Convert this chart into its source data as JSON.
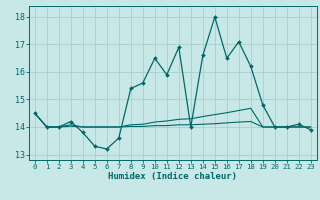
{
  "xlabel": "Humidex (Indice chaleur)",
  "xlim": [
    -0.5,
    23.5
  ],
  "ylim": [
    12.8,
    18.4
  ],
  "yticks": [
    13,
    14,
    15,
    16,
    17,
    18
  ],
  "xticks": [
    0,
    1,
    2,
    3,
    4,
    5,
    6,
    7,
    8,
    9,
    10,
    11,
    12,
    13,
    14,
    15,
    16,
    17,
    18,
    19,
    20,
    21,
    22,
    23
  ],
  "bg_color": "#c8e8e8",
  "grid_color": "#a8cece",
  "line_color": "#006868",
  "main_x": [
    0,
    1,
    2,
    3,
    4,
    5,
    6,
    7,
    8,
    9,
    10,
    11,
    12,
    13,
    14,
    15,
    16,
    17,
    18,
    19,
    20,
    21,
    22,
    23
  ],
  "main_y": [
    14.5,
    14.0,
    14.0,
    14.2,
    13.8,
    13.3,
    13.2,
    13.6,
    15.4,
    15.6,
    16.5,
    15.9,
    16.9,
    14.0,
    16.6,
    18.0,
    16.5,
    17.1,
    16.2,
    14.8,
    14.0,
    14.0,
    14.1,
    13.9
  ],
  "line2_x": [
    0,
    1,
    2,
    3,
    4,
    5,
    6,
    7,
    8,
    9,
    10,
    11,
    12,
    13,
    14,
    15,
    16,
    17,
    18,
    19,
    20,
    21,
    22,
    23
  ],
  "line2_y": [
    14.5,
    14.0,
    14.0,
    14.08,
    14.0,
    14.0,
    14.0,
    14.0,
    14.08,
    14.1,
    14.18,
    14.22,
    14.28,
    14.3,
    14.38,
    14.45,
    14.52,
    14.6,
    14.68,
    14.0,
    14.0,
    14.0,
    14.0,
    14.0
  ],
  "line3_x": [
    0,
    1,
    2,
    3,
    4,
    5,
    6,
    7,
    8,
    9,
    10,
    11,
    12,
    13,
    14,
    15,
    16,
    17,
    18,
    19,
    20,
    21,
    22,
    23
  ],
  "line3_y": [
    14.5,
    14.0,
    14.0,
    14.03,
    14.0,
    14.0,
    14.0,
    14.0,
    14.02,
    14.02,
    14.05,
    14.05,
    14.08,
    14.08,
    14.1,
    14.12,
    14.15,
    14.18,
    14.2,
    14.0,
    14.0,
    14.0,
    14.0,
    14.0
  ]
}
